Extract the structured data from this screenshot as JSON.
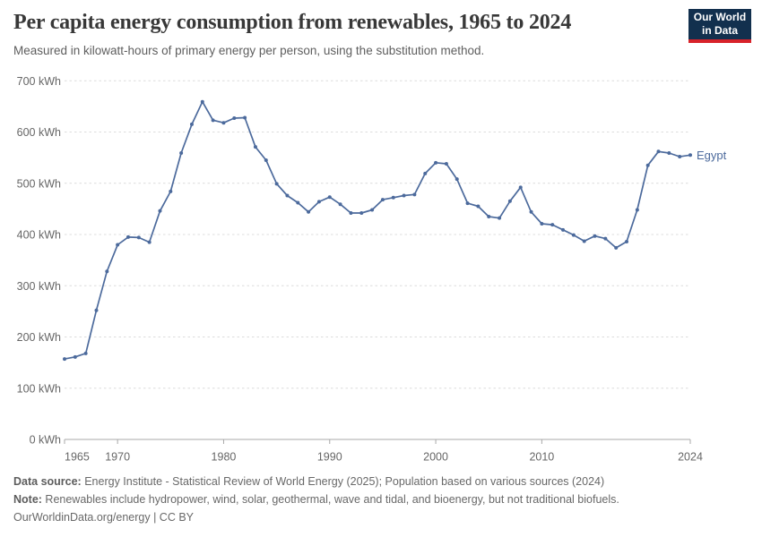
{
  "header": {
    "title": "Per capita energy consumption from renewables, 1965 to 2024",
    "subtitle": "Measured in kilowatt-hours of primary energy per person, using the substitution method.",
    "logo": {
      "line1": "Our World",
      "line2": "in Data"
    }
  },
  "colors": {
    "line": "#4c6a9c",
    "series_label": "#4c6a9c",
    "grid": "#dcdcdc",
    "axis": "#a8a8a8",
    "tick_text": "#666666",
    "logo_bg": "#12304e",
    "logo_stripe": "#d8232a"
  },
  "chart_data": {
    "type": "line",
    "title": "Per capita energy consumption from renewables, 1965 to 2024",
    "xlabel": "",
    "ylabel": "kWh",
    "xlim": [
      1965,
      2024
    ],
    "ylim": [
      0,
      700
    ],
    "grid": true,
    "x_ticks": [
      1965,
      1970,
      1980,
      1990,
      2000,
      2010,
      2024
    ],
    "y_ticks": [
      0,
      100,
      200,
      300,
      400,
      500,
      600,
      700
    ],
    "y_tick_suffix": " kWh",
    "legend_position": "end-of-line-label",
    "series": [
      {
        "name": "Egypt",
        "x": [
          1965,
          1966,
          1967,
          1968,
          1969,
          1970,
          1971,
          1972,
          1973,
          1974,
          1975,
          1976,
          1977,
          1978,
          1979,
          1980,
          1981,
          1982,
          1983,
          1984,
          1985,
          1986,
          1987,
          1988,
          1989,
          1990,
          1991,
          1992,
          1993,
          1994,
          1995,
          1996,
          1997,
          1998,
          1999,
          2000,
          2001,
          2002,
          2003,
          2004,
          2005,
          2006,
          2007,
          2008,
          2009,
          2010,
          2011,
          2012,
          2013,
          2014,
          2015,
          2016,
          2017,
          2018,
          2019,
          2020,
          2021,
          2022,
          2023,
          2024
        ],
        "values": [
          157,
          161,
          168,
          252,
          328,
          380,
          395,
          394,
          385,
          446,
          484,
          559,
          615,
          659,
          623,
          618,
          627,
          628,
          571,
          545,
          499,
          476,
          462,
          444,
          464,
          473,
          459,
          442,
          442,
          448,
          468,
          472,
          476,
          478,
          519,
          540,
          538,
          508,
          461,
          455,
          435,
          432,
          465,
          492,
          444,
          421,
          419,
          409,
          399,
          387,
          397,
          392,
          374,
          386,
          448,
          535,
          562,
          559,
          552,
          555
        ]
      }
    ]
  },
  "footer": {
    "data_source_label": "Data source:",
    "data_source_text": " Energy Institute - Statistical Review of World Energy (2025); Population based on various sources (2024)",
    "note_label": "Note:",
    "note_text": " Renewables include hydropower, wind, solar, geothermal, wave and tidal, and bioenergy, but not traditional biofuels.",
    "credit_line": "OurWorldinData.org/energy | CC BY"
  }
}
